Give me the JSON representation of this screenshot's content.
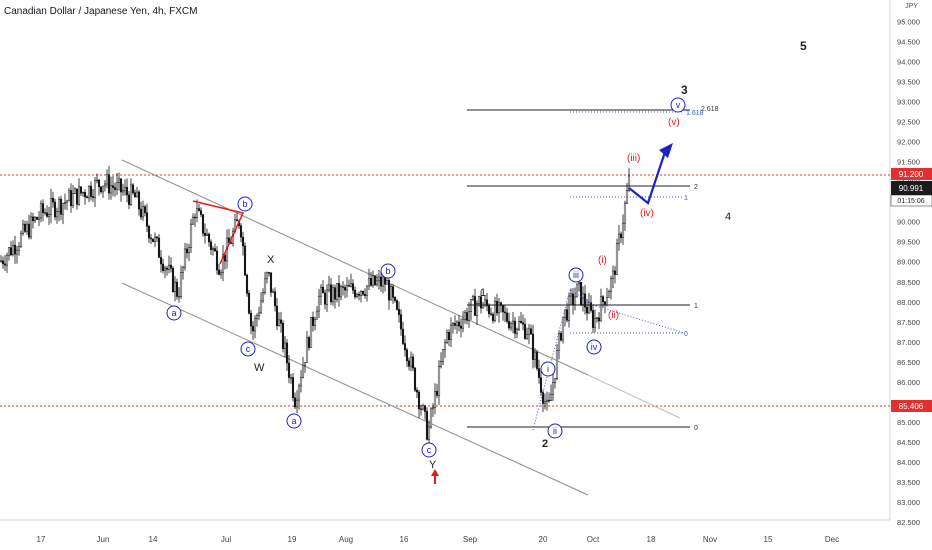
{
  "header": {
    "title": "Canadian Dollar / Japanese Yen, 4h, FXCM"
  },
  "axis": {
    "currency_unit": "JPY",
    "y_ticks": [
      "95.000",
      "94.500",
      "94.000",
      "93.500",
      "93.000",
      "92.500",
      "92.000",
      "91.500",
      "91.000",
      "90.500",
      "90.000",
      "89.500",
      "89.000",
      "88.500",
      "88.000",
      "87.500",
      "87.000",
      "86.500",
      "86.000",
      "85.500",
      "85.000",
      "84.500",
      "84.000",
      "83.500",
      "83.000",
      "82.500"
    ],
    "x_ticks": [
      "17",
      "Jun",
      "14",
      "Jul",
      "19",
      "Aug",
      "16",
      "Sep",
      "20",
      "Oct",
      "18",
      "Nov",
      "15",
      "Dec"
    ]
  },
  "price_tags": {
    "upper_level": "91.200",
    "current_price": "90.991",
    "countdown": "01:15:06",
    "lower_level": "85.406"
  },
  "colors": {
    "blue_wave": "#1a22c8",
    "red_wave": "#e21b1b",
    "channel": "#888888",
    "fib": "#1e1e2e",
    "candle": "#000000",
    "red_dotted": "#e03030"
  },
  "wave_labels": {
    "w_a1": "a",
    "w_b1": "b",
    "w_c1": "c",
    "W": "W",
    "X": "X",
    "w_a2": "a",
    "w_b2": "b",
    "w_c2": "c",
    "Y": "Y",
    "w1": "1",
    "w2": "2",
    "w3": "3",
    "w4": "4",
    "w5": "5",
    "i_blue": "i",
    "ii_blue": "ii",
    "iii_blue": "iii",
    "iv_blue": "iv",
    "v_blue": "v",
    "i_red": "(i)",
    "ii_red": "(ii)",
    "iii_red": "(iii)",
    "iv_red": "(iv)",
    "v_red": "(v)"
  },
  "fib_labels": {
    "f1_1": "1",
    "f1_0": "0",
    "f2_2": "2",
    "f2_1": "1",
    "f3_2618": "2.618",
    "f3_1618": "1.618",
    "f4_0": "0"
  },
  "chart_data": {
    "type": "candlestick",
    "symbol": "Canadian Dollar / Japanese Yen, 4h, FXCM",
    "ylim": [
      82.25,
      95.35
    ],
    "x": [
      "17",
      "Jun",
      "14",
      "Jul",
      "19",
      "Aug",
      "16",
      "Sep",
      "20",
      "Oct",
      "18",
      "Nov",
      "15",
      "Dec"
    ],
    "price_path": [
      {
        "date": "May 10",
        "close": 89.0
      },
      {
        "date": "May 17",
        "close": 90.2
      },
      {
        "date": "May 31",
        "close": 91.0
      },
      {
        "date": "Jun 10",
        "close": 90.6
      },
      {
        "date": "Jun 21",
        "close": 88.2
      },
      {
        "date": "Jun 25",
        "close": 90.3
      },
      {
        "date": "Jul 2",
        "close": 88.9
      },
      {
        "date": "Jul 5",
        "close": 90.1
      },
      {
        "date": "Jul 9",
        "close": 87.2
      },
      {
        "date": "Jul 13",
        "close": 88.7
      },
      {
        "date": "Jul 19",
        "close": 85.6
      },
      {
        "date": "Jul 26",
        "close": 88.1
      },
      {
        "date": "Aug 10",
        "close": 88.5
      },
      {
        "date": "Aug 17",
        "close": 87.1
      },
      {
        "date": "Aug 23",
        "close": 84.7
      },
      {
        "date": "Aug 28",
        "close": 87.2
      },
      {
        "date": "Sep 2",
        "close": 88.0
      },
      {
        "date": "Sep 14",
        "close": 87.3
      },
      {
        "date": "Sep 20",
        "close": 85.2
      },
      {
        "date": "Sep 24",
        "close": 87.6
      },
      {
        "date": "Sep 28",
        "close": 88.3
      },
      {
        "date": "Oct 1",
        "close": 87.5
      },
      {
        "date": "Oct 6",
        "close": 88.6
      },
      {
        "date": "Oct 11",
        "close": 90.991
      }
    ],
    "horizontal_levels": [
      91.2,
      85.406
    ],
    "projection": {
      "color": "blue",
      "points": [
        {
          "date": "Oct 11",
          "price": 90.991
        },
        {
          "date": "Oct 14",
          "price": 90.5
        },
        {
          "date": "Oct 22",
          "price": 91.8
        }
      ]
    }
  }
}
